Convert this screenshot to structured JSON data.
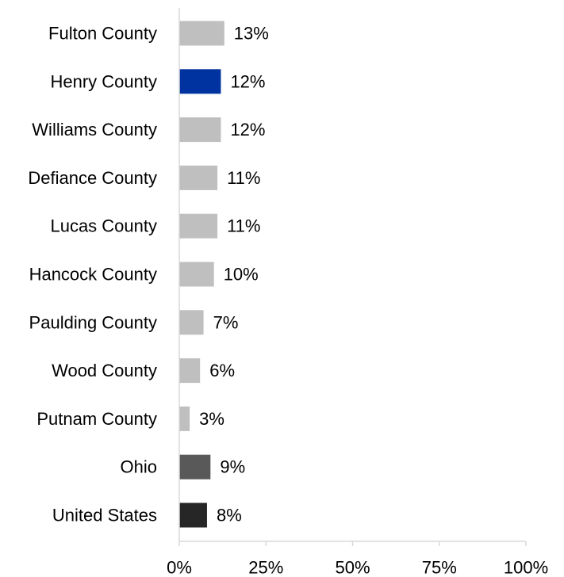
{
  "chart_data": {
    "type": "bar",
    "orientation": "horizontal",
    "categories": [
      "Fulton County",
      "Henry County",
      "Williams County",
      "Defiance County",
      "Lucas County",
      "Hancock County",
      "Paulding County",
      "Wood County",
      "Putnam County",
      "Ohio",
      "United States"
    ],
    "values": [
      13,
      12,
      12,
      11,
      11,
      10,
      7,
      6,
      3,
      9,
      8
    ],
    "data_labels": [
      "13%",
      "12%",
      "12%",
      "11%",
      "11%",
      "10%",
      "7%",
      "6%",
      "3%",
      "9%",
      "8%"
    ],
    "bar_colors": [
      "#bfbfbf",
      "#0033a0",
      "#bfbfbf",
      "#bfbfbf",
      "#bfbfbf",
      "#bfbfbf",
      "#bfbfbf",
      "#bfbfbf",
      "#bfbfbf",
      "#595959",
      "#262626"
    ],
    "xlim": [
      0,
      100
    ],
    "x_ticks": [
      0,
      25,
      50,
      75,
      100
    ],
    "x_tick_labels": [
      "0%",
      "25%",
      "50%",
      "75%",
      "100%"
    ],
    "title": "",
    "xlabel": "",
    "ylabel": "",
    "grid": false,
    "legend": "none"
  }
}
